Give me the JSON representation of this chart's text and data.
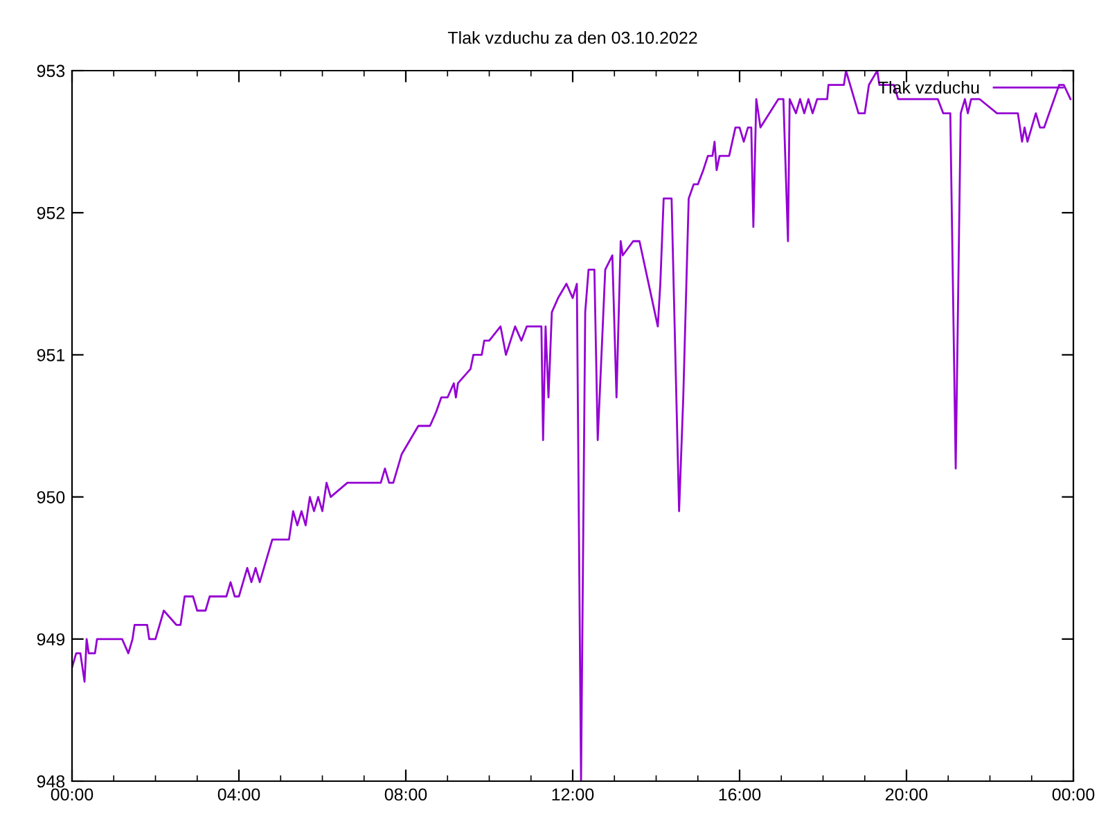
{
  "chart_data": {
    "type": "line",
    "title": "Tlak vzduchu za den 03.10.2022",
    "x": [
      0.0,
      0.1,
      0.2,
      0.25,
      0.3,
      0.35,
      0.4,
      0.55,
      0.6,
      1.2,
      1.35,
      1.45,
      1.5,
      1.8,
      1.85,
      2.0,
      2.1,
      2.2,
      2.5,
      2.6,
      2.7,
      2.9,
      3.0,
      3.2,
      3.3,
      3.7,
      3.8,
      3.9,
      4.0,
      4.2,
      4.3,
      4.4,
      4.5,
      4.6,
      4.7,
      4.8,
      5.2,
      5.3,
      5.4,
      5.5,
      5.6,
      5.7,
      5.8,
      5.9,
      6.0,
      6.1,
      6.2,
      6.6,
      7.4,
      7.5,
      7.6,
      7.7,
      7.8,
      7.9,
      8.3,
      8.58,
      8.73,
      8.85,
      9.0,
      9.15,
      9.2,
      9.25,
      9.55,
      9.62,
      9.82,
      9.88,
      10.0,
      10.27,
      10.4,
      10.62,
      10.77,
      10.9,
      11.1,
      11.25,
      11.29,
      11.35,
      11.42,
      11.5,
      11.65,
      11.85,
      12.0,
      12.1,
      12.2,
      12.3,
      12.38,
      12.52,
      12.6,
      12.78,
      12.95,
      13.05,
      13.15,
      13.2,
      13.45,
      13.6,
      14.04,
      14.1,
      14.18,
      14.37,
      14.55,
      14.65,
      14.78,
      14.9,
      15.0,
      15.13,
      15.24,
      15.35,
      15.4,
      15.45,
      15.52,
      15.75,
      15.9,
      16.0,
      16.1,
      16.2,
      16.28,
      16.33,
      16.4,
      16.5,
      16.93,
      17.05,
      17.16,
      17.2,
      17.35,
      17.45,
      17.55,
      17.65,
      17.75,
      17.86,
      18.1,
      18.13,
      18.5,
      18.55,
      18.75,
      18.85,
      18.95,
      19.0,
      19.1,
      19.3,
      19.35,
      19.7,
      19.8,
      20.75,
      20.88,
      21.05,
      21.18,
      21.3,
      21.4,
      21.47,
      21.55,
      21.75,
      22.17,
      22.67,
      22.77,
      22.83,
      22.9,
      23.1,
      23.2,
      23.3,
      23.66,
      23.77,
      23.93
    ],
    "series": [
      {
        "name": "Tlak vzduchu",
        "color": "#9400d3",
        "values": [
          948.8,
          948.9,
          948.9,
          948.8,
          948.7,
          949.0,
          948.9,
          948.9,
          949.0,
          949.0,
          948.9,
          949.0,
          949.1,
          949.1,
          949.0,
          949.0,
          949.1,
          949.2,
          949.1,
          949.1,
          949.3,
          949.3,
          949.2,
          949.2,
          949.3,
          949.3,
          949.4,
          949.3,
          949.3,
          949.5,
          949.4,
          949.5,
          949.4,
          949.5,
          949.6,
          949.7,
          949.7,
          949.9,
          949.8,
          949.9,
          949.8,
          950.0,
          949.9,
          950.0,
          949.9,
          950.1,
          950.0,
          950.1,
          950.1,
          950.2,
          950.1,
          950.1,
          950.2,
          950.3,
          950.5,
          950.5,
          950.6,
          950.7,
          950.7,
          950.8,
          950.7,
          950.8,
          950.9,
          951.0,
          951.0,
          951.1,
          951.1,
          951.2,
          951.0,
          951.2,
          951.1,
          951.2,
          951.2,
          951.2,
          950.4,
          951.2,
          950.7,
          951.3,
          951.4,
          951.5,
          951.4,
          951.5,
          948.0,
          951.3,
          951.6,
          951.6,
          950.4,
          951.6,
          951.7,
          950.7,
          951.8,
          951.7,
          951.8,
          951.8,
          951.2,
          951.5,
          952.1,
          952.1,
          949.9,
          950.7,
          952.1,
          952.2,
          952.2,
          952.3,
          952.4,
          952.4,
          952.5,
          952.3,
          952.4,
          952.4,
          952.6,
          952.6,
          952.5,
          952.6,
          952.6,
          951.9,
          952.8,
          952.6,
          952.8,
          952.8,
          951.8,
          952.8,
          952.7,
          952.8,
          952.7,
          952.8,
          952.7,
          952.8,
          952.8,
          952.9,
          952.9,
          953.0,
          952.8,
          952.7,
          952.7,
          952.7,
          952.9,
          953.0,
          952.9,
          952.9,
          952.8,
          952.8,
          952.7,
          952.7,
          950.2,
          952.7,
          952.8,
          952.7,
          952.8,
          952.8,
          952.7,
          952.7,
          952.5,
          952.6,
          952.5,
          952.7,
          952.6,
          952.6,
          952.9,
          952.9,
          952.8
        ]
      }
    ],
    "xlim": [
      0,
      24
    ],
    "xticks": [
      {
        "value": 0,
        "label": "00:00"
      },
      {
        "value": 4,
        "label": "04:00"
      },
      {
        "value": 8,
        "label": "08:00"
      },
      {
        "value": 12,
        "label": "12:00"
      },
      {
        "value": 16,
        "label": "16:00"
      },
      {
        "value": 20,
        "label": "20:00"
      },
      {
        "value": 24,
        "label": "00:00"
      }
    ],
    "ylim": [
      948,
      953
    ],
    "yticks": [
      948,
      949,
      950,
      951,
      952,
      953
    ],
    "legend": "top right",
    "grid": false
  }
}
